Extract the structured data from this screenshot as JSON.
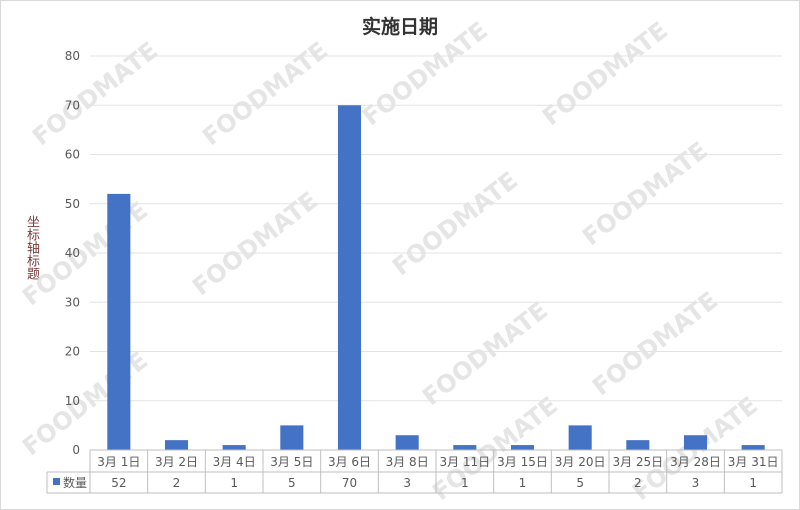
{
  "watermark": "FOODMATE",
  "chart_data": {
    "type": "bar",
    "title": "实施日期",
    "ylabel": "坐标轴标题",
    "xlabel": "",
    "categories": [
      "3月 1日",
      "3月 2日",
      "3月 4日",
      "3月 5日",
      "3月 6日",
      "3月 8日",
      "3月 11日",
      "3月 15日",
      "3月 20日",
      "3月 25日",
      "3月 28日",
      "3月 31日"
    ],
    "series": [
      {
        "name": "数量",
        "values": [
          52,
          2,
          1,
          5,
          70,
          3,
          1,
          1,
          5,
          2,
          3,
          1
        ],
        "color": "#4472c4"
      }
    ],
    "ylim": [
      0,
      80
    ],
    "yticks": [
      0,
      10,
      20,
      30,
      40,
      50,
      60,
      70,
      80
    ],
    "grid": true,
    "legend": "data-table",
    "data_table": true
  }
}
